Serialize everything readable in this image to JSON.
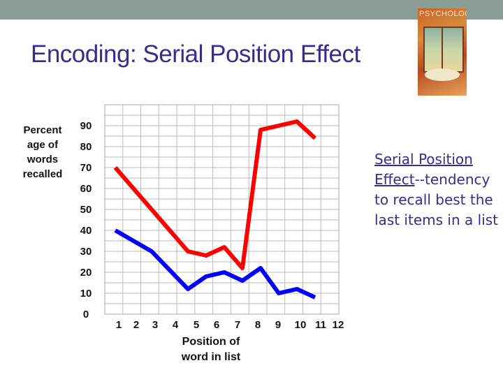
{
  "slide": {
    "title": "Encoding: Serial Position Effect",
    "description_term": "Serial Position Effect",
    "description_rest": "--tendency to recall best the last items in a list",
    "book_cover_text": "PSYCHOLOGY"
  },
  "colors": {
    "title": "#3d2a8f",
    "top_bar": "#8a9e94",
    "red_series": "#ff0000",
    "blue_series": "#0000ff"
  },
  "chart_data": {
    "type": "line",
    "title": "",
    "ylabel_lines": [
      "Percent",
      "age of",
      "words",
      "recalled"
    ],
    "xlabel_lines": [
      "Position of",
      "word in list"
    ],
    "x": [
      1,
      2,
      3,
      4,
      5,
      6,
      7,
      8,
      9,
      10,
      11,
      12
    ],
    "x_tick_labels": [
      "1",
      "2",
      "3",
      "4",
      "5",
      "6",
      "7",
      "8",
      "9",
      "10",
      "11",
      "12"
    ],
    "y_ticks": [
      0,
      10,
      20,
      30,
      40,
      50,
      60,
      70,
      80,
      90
    ],
    "ylim": [
      0,
      90
    ],
    "grid": true,
    "series": [
      {
        "color": "#ff0000",
        "values": [
          70,
          60,
          50,
          40,
          30,
          28,
          32,
          22,
          88,
          90,
          92,
          84
        ]
      },
      {
        "color": "#0000ff",
        "values": [
          40,
          35,
          30,
          21,
          12,
          18,
          20,
          16,
          22,
          10,
          12,
          8
        ]
      }
    ]
  }
}
